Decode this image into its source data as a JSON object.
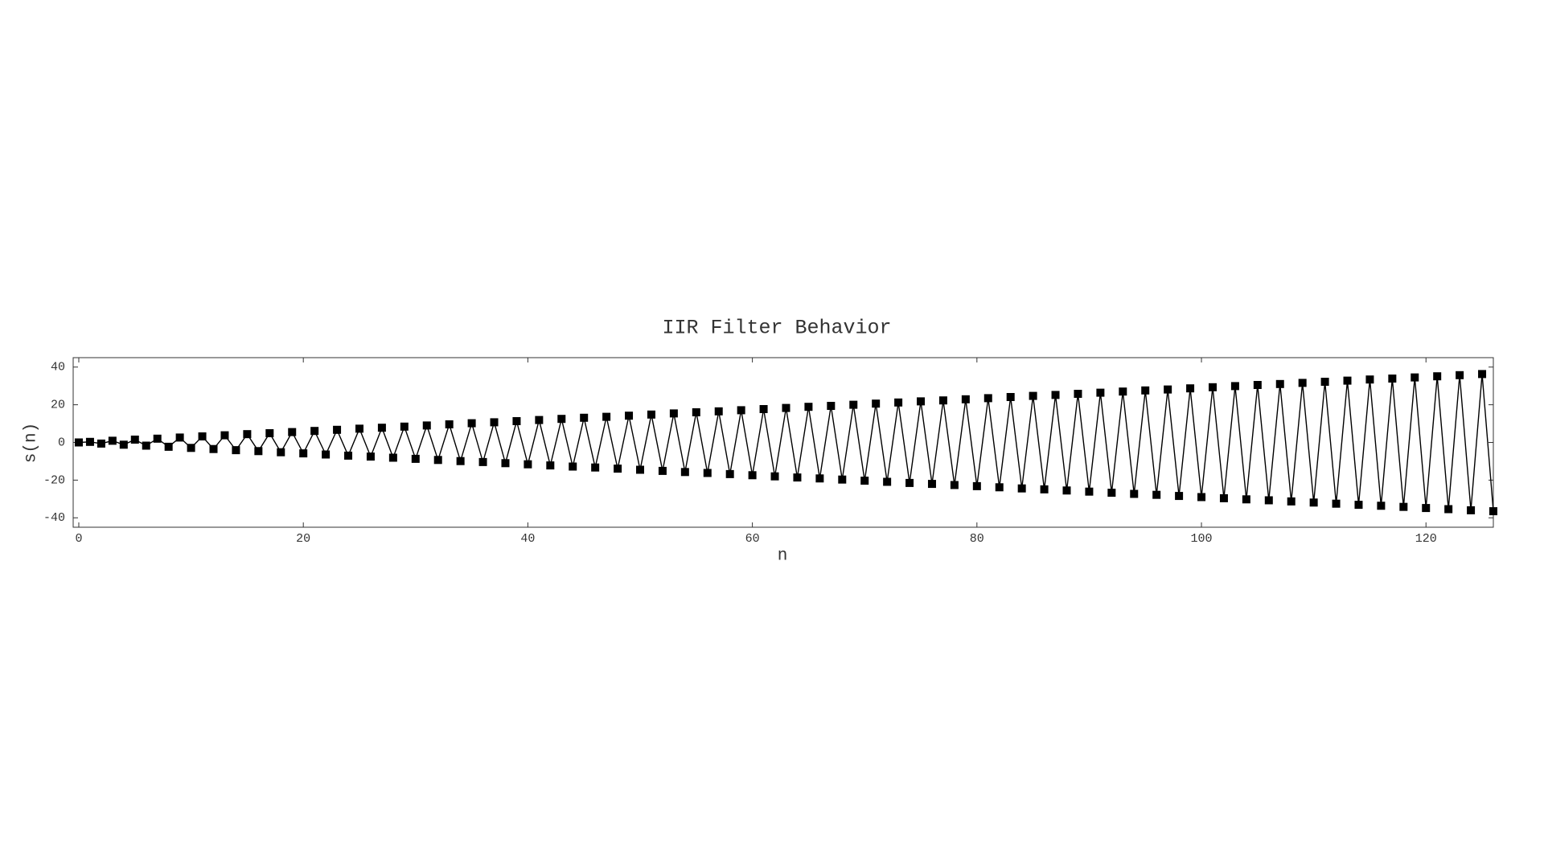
{
  "chart_data": {
    "type": "line",
    "title": "IIR Filter Behavior",
    "xlabel": "n",
    "ylabel": "s(n)",
    "x": [
      0,
      1,
      2,
      3,
      4,
      5,
      6,
      7,
      8,
      9,
      10,
      11,
      12,
      13,
      14,
      15,
      16,
      17,
      18,
      19,
      20,
      21,
      22,
      23,
      24,
      25,
      26,
      27,
      28,
      29,
      30,
      31,
      32,
      33,
      34,
      35,
      36,
      37,
      38,
      39,
      40,
      41,
      42,
      43,
      44,
      45,
      46,
      47,
      48,
      49,
      50,
      51,
      52,
      53,
      54,
      55,
      56,
      57,
      58,
      59,
      60,
      61,
      62,
      63,
      64,
      65,
      66,
      67,
      68,
      69,
      70,
      71,
      72,
      73,
      74,
      75,
      76,
      77,
      78,
      79,
      80,
      81,
      82,
      83,
      84,
      85,
      86,
      87,
      88,
      89,
      90,
      91,
      92,
      93,
      94,
      95,
      96,
      97,
      98,
      99,
      100,
      101,
      102,
      103,
      104,
      105,
      106,
      107,
      108,
      109,
      110,
      111,
      112,
      113,
      114,
      115,
      116,
      117,
      118,
      119,
      120,
      121,
      122,
      123,
      124,
      125,
      126
    ],
    "series": [
      {
        "color": "#000000",
        "values": [
          0,
          0.3,
          -0.6,
          0.9,
          -1.2,
          1.5,
          -1.7,
          2.0,
          -2.3,
          2.6,
          -2.9,
          3.2,
          -3.5,
          3.8,
          -4.1,
          4.4,
          -4.6,
          4.9,
          -5.2,
          5.5,
          -5.8,
          6.1,
          -6.4,
          6.7,
          -7.0,
          7.3,
          -7.5,
          7.8,
          -8.1,
          8.4,
          -8.7,
          9.0,
          -9.3,
          9.6,
          -9.9,
          10.2,
          -10.4,
          10.7,
          -11.0,
          11.3,
          -11.6,
          11.9,
          -12.2,
          12.5,
          -12.8,
          13.1,
          -13.3,
          13.6,
          -13.9,
          14.2,
          -14.5,
          14.8,
          -15.1,
          15.4,
          -15.7,
          16.0,
          -16.2,
          16.5,
          -16.8,
          17.1,
          -17.4,
          17.7,
          -18.0,
          18.3,
          -18.6,
          18.9,
          -19.1,
          19.4,
          -19.7,
          20.0,
          -20.3,
          20.6,
          -20.9,
          21.2,
          -21.5,
          21.8,
          -22.0,
          22.3,
          -22.6,
          22.9,
          -23.2,
          23.5,
          -23.8,
          24.1,
          -24.4,
          24.7,
          -24.9,
          25.2,
          -25.5,
          25.8,
          -26.1,
          26.4,
          -26.7,
          27.0,
          -27.3,
          27.6,
          -27.8,
          28.1,
          -28.4,
          28.7,
          -29.0,
          29.3,
          -29.6,
          29.9,
          -30.2,
          30.5,
          -30.7,
          31.0,
          -31.3,
          31.6,
          -31.9,
          32.2,
          -32.5,
          32.8,
          -33.1,
          33.4,
          -33.6,
          33.9,
          -34.2,
          34.5,
          -34.8,
          35.1,
          -35.4,
          35.7,
          -36.0,
          36.3,
          -36.5
        ]
      }
    ],
    "xlim": [
      -0.5,
      126
    ],
    "ylim": [
      -45,
      45
    ],
    "xticks": [
      0,
      20,
      40,
      60,
      80,
      100,
      120
    ],
    "yticks": [
      -40,
      -20,
      0,
      20,
      40
    ]
  }
}
